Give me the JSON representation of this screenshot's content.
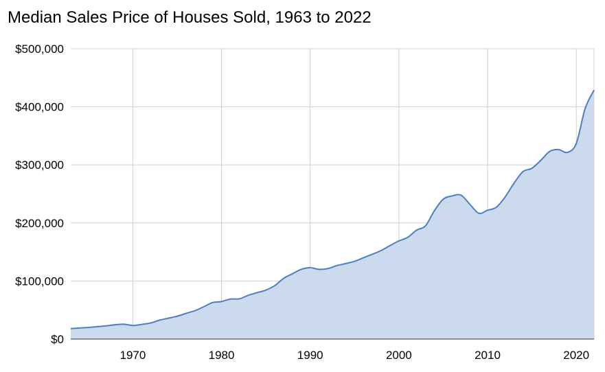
{
  "chart_data": {
    "type": "area",
    "title": "Median Sales Price of Houses Sold, 1963 to 2022",
    "xlabel": "",
    "ylabel": "",
    "xlim": [
      1963,
      2022
    ],
    "ylim": [
      0,
      500000
    ],
    "x_ticks": [
      1970,
      1980,
      1990,
      2000,
      2010,
      2020
    ],
    "x_tick_labels": [
      "1970",
      "1980",
      "1990",
      "2000",
      "2010",
      "2020"
    ],
    "y_ticks": [
      0,
      100000,
      200000,
      300000,
      400000,
      500000
    ],
    "y_tick_labels": [
      "$0",
      "$100,000",
      "$200,000",
      "$300,000",
      "$400,000",
      "$500,000"
    ],
    "grid": true,
    "legend": "none",
    "colors": {
      "line": "#4f7ec0",
      "fill": "#ccdaee",
      "grid": "#d0d0d0"
    },
    "series": [
      {
        "x": [
          1963,
          1964,
          1965,
          1966,
          1967,
          1968,
          1969,
          1970,
          1971,
          1972,
          1973,
          1974,
          1975,
          1976,
          1977,
          1978,
          1979,
          1980,
          1981,
          1982,
          1983,
          1984,
          1985,
          1986,
          1987,
          1988,
          1989,
          1990,
          1991,
          1992,
          1993,
          1994,
          1995,
          1996,
          1997,
          1998,
          1999,
          2000,
          2001,
          2002,
          2003,
          2004,
          2005,
          2006,
          2007,
          2008,
          2009,
          2010,
          2011,
          2012,
          2013,
          2014,
          2015,
          2016,
          2017,
          2018,
          2019,
          2020,
          2021,
          2022
        ],
        "values": [
          18000,
          19000,
          20000,
          21400,
          22700,
          24700,
          25600,
          23400,
          25200,
          27600,
          32500,
          35900,
          39300,
          44200,
          48800,
          55700,
          62900,
          64600,
          68900,
          69300,
          75300,
          79900,
          84300,
          92000,
          104500,
          112500,
          120000,
          122900,
          120000,
          121500,
          126500,
          130000,
          133900,
          140000,
          146000,
          152500,
          161000,
          169000,
          175200,
          187600,
          195000,
          221000,
          240900,
          246500,
          247900,
          232100,
          216700,
          221800,
          227200,
          245200,
          268900,
          288500,
          294200,
          307800,
          323100,
          326400,
          321500,
          336900,
          397100,
          428700
        ]
      }
    ]
  }
}
